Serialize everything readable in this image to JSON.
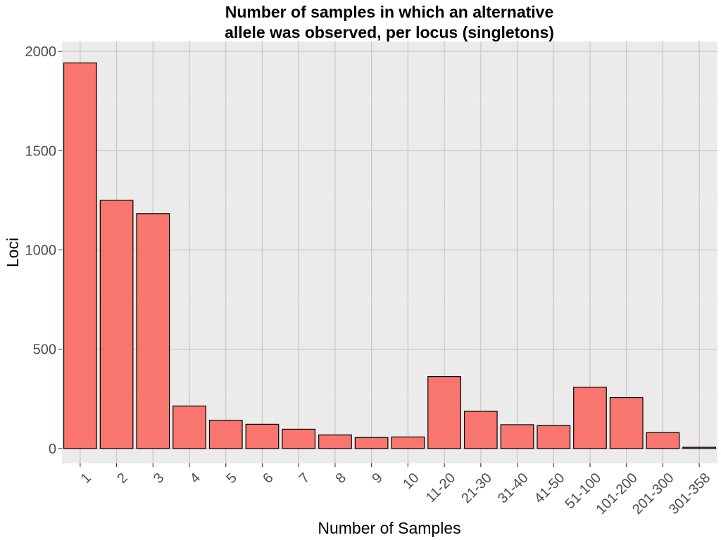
{
  "chart_data": {
    "type": "bar",
    "title_lines": [
      "Number of samples in which an alternative",
      "allele was observed, per locus (singletons)"
    ],
    "xlabel": "Number of Samples",
    "ylabel": "Loci",
    "categories": [
      "1",
      "2",
      "3",
      "4",
      "5",
      "6",
      "7",
      "8",
      "9",
      "10",
      "11-20",
      "21-30",
      "31-40",
      "41-50",
      "51-100",
      "101-200",
      "201-300",
      "301-358"
    ],
    "values": [
      1942,
      1250,
      1183,
      214,
      142,
      122,
      97,
      68,
      55,
      58,
      362,
      187,
      120,
      115,
      309,
      256,
      80,
      6
    ],
    "ylim": [
      -75,
      2050
    ],
    "yticks": [
      0,
      500,
      1000,
      1500,
      2000
    ],
    "ytick_labels": [
      "0",
      "500",
      "1000",
      "1500",
      "2000"
    ],
    "bar_color": "#F8766D",
    "bar_outline": "#000000",
    "panel_background": "#EBEBEB",
    "grid": true,
    "legend": "none"
  }
}
